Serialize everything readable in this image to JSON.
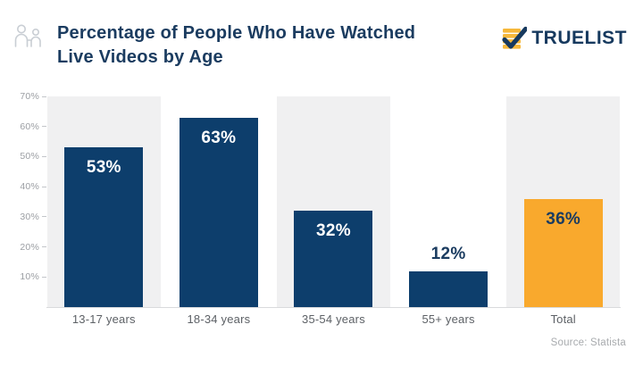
{
  "header": {
    "title_line1": "Percentage of People Who Have Watched",
    "title_line2": "Live Videos by Age",
    "logo_text": "TRUELIST"
  },
  "colors": {
    "navy": "#0d3e6c",
    "orange": "#f9a92d",
    "band_gray": "#f0f0f1",
    "title_navy": "#1b3c60",
    "white": "#ffffff"
  },
  "chart_data": {
    "type": "bar",
    "title": "Percentage of People Who Have Watched Live Videos by Age",
    "categories": [
      "13-17 years",
      "18-34 years",
      "35-54 years",
      "55+ years",
      "Total"
    ],
    "values": [
      53,
      63,
      32,
      12,
      36
    ],
    "value_labels": [
      "53%",
      "63%",
      "32%",
      "12%",
      "36%"
    ],
    "bar_colors": [
      "#0d3e6c",
      "#0d3e6c",
      "#0d3e6c",
      "#0d3e6c",
      "#f9a92d"
    ],
    "label_placement": [
      "inside",
      "inside",
      "inside",
      "above",
      "inside"
    ],
    "label_colors": [
      "#ffffff",
      "#ffffff",
      "#ffffff",
      "#1b3c60",
      "#1b3c60"
    ],
    "band_columns": [
      true,
      false,
      true,
      false,
      true
    ],
    "xlabel": "",
    "ylabel": "",
    "ylim": [
      0,
      70
    ],
    "yticks": [
      "10%",
      "20%",
      "30%",
      "40%",
      "50%",
      "60%",
      "70%"
    ],
    "gridlines": false,
    "legend": false,
    "source": "Source: Statista"
  }
}
